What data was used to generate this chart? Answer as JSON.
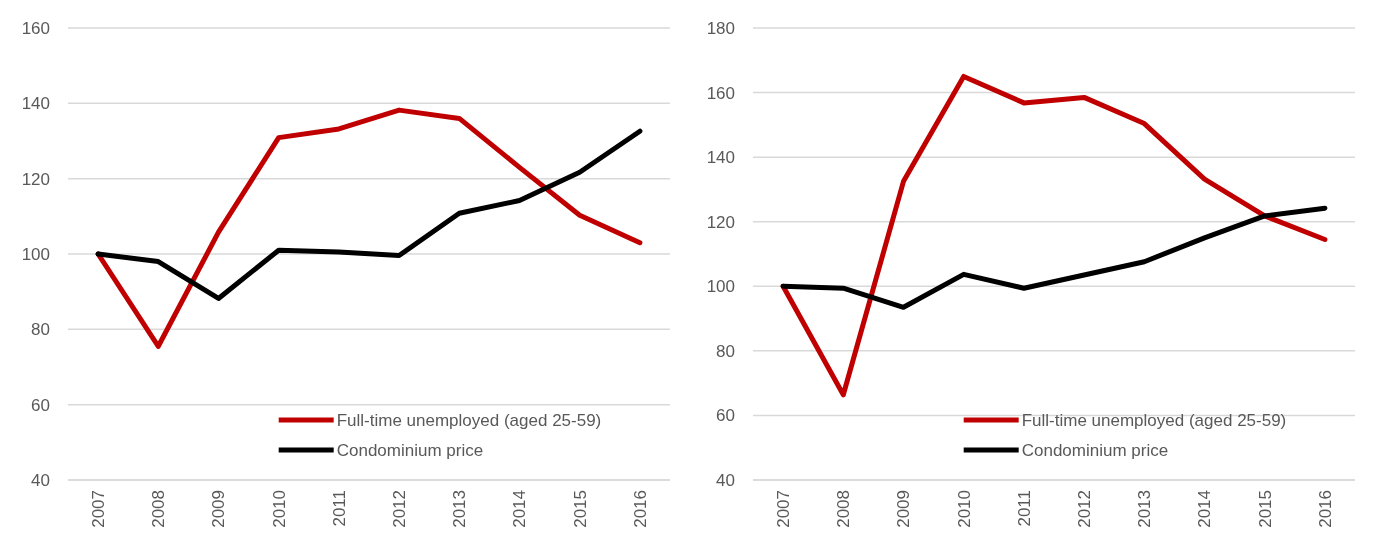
{
  "chart_data": [
    {
      "type": "line",
      "categories": [
        "2007",
        "2008",
        "2009",
        "2010",
        "2011",
        "2012",
        "2013",
        "2014",
        "2015",
        "2016"
      ],
      "series": [
        {
          "name": "Full-time unemployed (aged 25-59)",
          "color": "#c00000",
          "values": [
            100,
            75.5,
            105.8,
            130.9,
            133.2,
            138.2,
            136,
            123,
            110.3,
            103
          ]
        },
        {
          "name": "Condominium price",
          "color": "#000000",
          "values": [
            100,
            98,
            88.2,
            101,
            100.5,
            99.6,
            110.8,
            114.2,
            121.7,
            132.6
          ]
        }
      ],
      "ylim": [
        40,
        160
      ],
      "yticks": [
        40,
        60,
        80,
        100,
        120,
        140,
        160
      ],
      "grid": "y",
      "legend": "bottom right",
      "line_style": "solid"
    },
    {
      "type": "line",
      "categories": [
        "2007",
        "2008",
        "2009",
        "2010",
        "2011",
        "2012",
        "2013",
        "2014",
        "2015",
        "2016"
      ],
      "series": [
        {
          "name": "Full-time unemployed (aged 25-59)",
          "color": "#c00000",
          "values": [
            100,
            66.4,
            132.5,
            165,
            156.8,
            158.5,
            150.4,
            133.2,
            121.8,
            114.5
          ]
        },
        {
          "name": "Condominium price",
          "color": "#000000",
          "values": [
            100,
            99.4,
            93.5,
            103.7,
            99.4,
            103.5,
            107.6,
            115,
            121.8,
            124.2
          ]
        }
      ],
      "ylim": [
        40,
        180
      ],
      "yticks": [
        40,
        60,
        80,
        100,
        120,
        140,
        160,
        180
      ],
      "grid": "y",
      "legend": "bottom right",
      "line_style": "solid"
    }
  ]
}
